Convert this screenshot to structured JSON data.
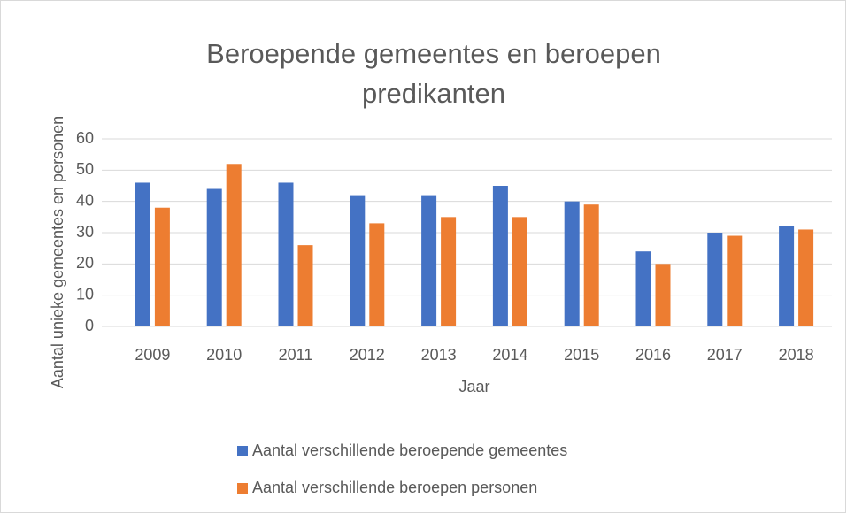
{
  "chart_data": {
    "type": "bar",
    "title": "Beroepende gemeentes en beroepen predikanten",
    "x_label": "Jaar",
    "y_label": "Aantal unieke gemeentes en personen",
    "categories": [
      "2009",
      "2010",
      "2011",
      "2012",
      "2013",
      "2014",
      "2015",
      "2016",
      "2017",
      "2018"
    ],
    "series": [
      {
        "name": "Aantal verschillende beroepende gemeentes",
        "color": "#4472c4",
        "values": [
          46,
          44,
          46,
          42,
          42,
          45,
          40,
          24,
          30,
          32
        ]
      },
      {
        "name": "Aantal verschillende beroepen personen",
        "color": "#ed7d31",
        "values": [
          38,
          52,
          26,
          33,
          35,
          35,
          39,
          20,
          29,
          31
        ]
      }
    ],
    "ylim": [
      0,
      60
    ],
    "yticks": [
      0,
      10,
      20,
      30,
      40,
      50,
      60
    ],
    "grid": true,
    "legend": "bottom"
  }
}
